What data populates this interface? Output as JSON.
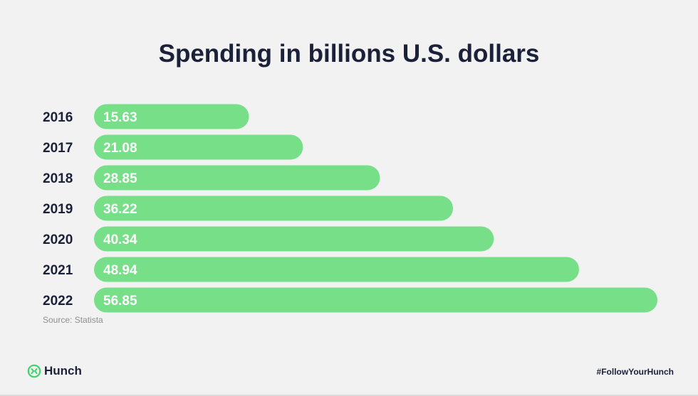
{
  "chart_data": {
    "type": "bar",
    "orientation": "horizontal",
    "title": "Spending in billions U.S. dollars",
    "categories": [
      "2016",
      "2017",
      "2018",
      "2019",
      "2020",
      "2021",
      "2022"
    ],
    "values": [
      15.63,
      21.08,
      28.85,
      36.22,
      40.34,
      48.94,
      56.85
    ],
    "value_labels": [
      "15.63",
      "21.08",
      "28.85",
      "36.22",
      "40.34",
      "48.94",
      "56.85"
    ],
    "xlabel": "",
    "ylabel": "",
    "grid": false,
    "legend": "none",
    "bar_color": "#76df88",
    "label_color": "#ffffff"
  },
  "footer": {
    "source": "Source: Statista",
    "brand": "Hunch",
    "brand_icon": "hunch-logo-icon",
    "hashtag": "#FollowYourHunch",
    "brand_color": "#3fd46a"
  }
}
